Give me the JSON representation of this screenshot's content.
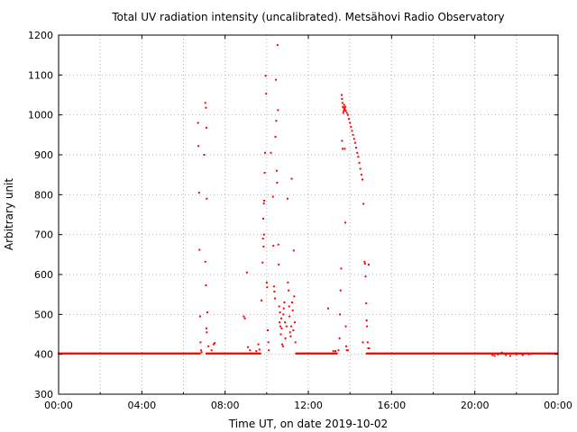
{
  "chart_data": {
    "type": "scatter",
    "title": "Total UV radiation intensity (uncalibrated). Metsähovi Radio Observatory",
    "xlabel": "Time UT, on date 2019-10-02",
    "ylabel": "Arbitrary unit",
    "x_unit": "hours UT",
    "xlim": [
      0,
      24
    ],
    "ylim": [
      300,
      1200
    ],
    "x_ticks": [
      {
        "value": 0,
        "label": "00:00"
      },
      {
        "value": 4,
        "label": "04:00"
      },
      {
        "value": 8,
        "label": "08:00"
      },
      {
        "value": 12,
        "label": "12:00"
      },
      {
        "value": 16,
        "label": "16:00"
      },
      {
        "value": 20,
        "label": "20:00"
      },
      {
        "value": 24,
        "label": "00:00"
      }
    ],
    "y_ticks": [
      300,
      400,
      500,
      600,
      700,
      800,
      900,
      1000,
      1100,
      1200
    ],
    "x_minor_grid": [
      2,
      6,
      10,
      14,
      18,
      22
    ],
    "grid": true,
    "color": "#ff0000",
    "baseline": {
      "y": 402,
      "x_start": 0,
      "x_end": 24,
      "gaps": [
        [
          6.8,
          7.1
        ],
        [
          9.7,
          11.4
        ],
        [
          13.4,
          14.8
        ]
      ]
    },
    "series": [
      {
        "points": [
          [
            6.7,
            980
          ],
          [
            6.72,
            922
          ],
          [
            6.75,
            805
          ],
          [
            6.77,
            662
          ],
          [
            6.8,
            495
          ],
          [
            6.82,
            430
          ],
          [
            6.85,
            410
          ],
          [
            6.87,
            405
          ],
          [
            7.05,
            1030
          ],
          [
            7.08,
            1018
          ],
          [
            7.1,
            968
          ],
          [
            7.0,
            900
          ],
          [
            7.12,
            790
          ],
          [
            7.05,
            632
          ],
          [
            7.08,
            573
          ],
          [
            7.15,
            505
          ],
          [
            7.12,
            455
          ],
          [
            7.1,
            465
          ],
          [
            7.2,
            420
          ],
          [
            7.35,
            410
          ],
          [
            7.45,
            425
          ],
          [
            7.5,
            428
          ],
          [
            8.9,
            495
          ],
          [
            8.95,
            490
          ],
          [
            9.05,
            605
          ],
          [
            9.1,
            418
          ],
          [
            9.2,
            410
          ],
          [
            9.5,
            408
          ],
          [
            9.6,
            425
          ],
          [
            9.65,
            412
          ],
          [
            9.75,
            535
          ],
          [
            9.8,
            630
          ],
          [
            9.82,
            690
          ],
          [
            9.85,
            670
          ],
          [
            9.87,
            700
          ],
          [
            9.88,
            785
          ],
          [
            9.9,
            855
          ],
          [
            9.92,
            905
          ],
          [
            9.95,
            1098
          ],
          [
            9.97,
            1053
          ],
          [
            9.83,
            740
          ],
          [
            9.86,
            778
          ],
          [
            10.0,
            580
          ],
          [
            10.02,
            568
          ],
          [
            10.05,
            460
          ],
          [
            10.08,
            430
          ],
          [
            10.1,
            410
          ],
          [
            10.2,
            905
          ],
          [
            10.3,
            795
          ],
          [
            10.32,
            672
          ],
          [
            10.35,
            570
          ],
          [
            10.37,
            557
          ],
          [
            10.4,
            540
          ],
          [
            10.42,
            945
          ],
          [
            10.44,
            1088
          ],
          [
            10.46,
            985
          ],
          [
            10.48,
            860
          ],
          [
            10.5,
            830
          ],
          [
            10.52,
            1175
          ],
          [
            10.54,
            1012
          ],
          [
            10.56,
            675
          ],
          [
            10.58,
            625
          ],
          [
            10.6,
            520
          ],
          [
            10.62,
            480
          ],
          [
            10.64,
            505
          ],
          [
            10.66,
            470
          ],
          [
            10.68,
            450
          ],
          [
            10.7,
            490
          ],
          [
            10.72,
            465
          ],
          [
            10.75,
            425
          ],
          [
            10.78,
            420
          ],
          [
            10.8,
            500
          ],
          [
            10.82,
            515
          ],
          [
            10.85,
            530
          ],
          [
            10.88,
            480
          ],
          [
            10.9,
            440
          ],
          [
            10.95,
            470
          ],
          [
            11.0,
            790
          ],
          [
            11.02,
            580
          ],
          [
            11.05,
            560
          ],
          [
            11.08,
            520
          ],
          [
            11.1,
            495
          ],
          [
            11.12,
            455
          ],
          [
            11.15,
            445
          ],
          [
            11.18,
            470
          ],
          [
            11.2,
            840
          ],
          [
            11.22,
            530
          ],
          [
            11.25,
            510
          ],
          [
            11.28,
            460
          ],
          [
            11.3,
            660
          ],
          [
            11.32,
            545
          ],
          [
            11.35,
            480
          ],
          [
            11.38,
            430
          ],
          [
            12.95,
            515
          ],
          [
            13.2,
            408
          ],
          [
            13.3,
            408
          ],
          [
            13.45,
            410
          ],
          [
            13.5,
            440
          ],
          [
            13.52,
            500
          ],
          [
            13.55,
            560
          ],
          [
            13.58,
            615
          ],
          [
            13.6,
            1050
          ],
          [
            13.62,
            1040
          ],
          [
            13.64,
            1030
          ],
          [
            13.66,
            1020
          ],
          [
            13.68,
            1005
          ],
          [
            13.7,
            1018
          ],
          [
            13.72,
            1025
          ],
          [
            13.74,
            1015
          ],
          [
            13.76,
            1012
          ],
          [
            13.78,
            1020
          ],
          [
            13.8,
            1010
          ],
          [
            13.85,
            1005
          ],
          [
            13.9,
            1000
          ],
          [
            13.95,
            990
          ],
          [
            14.0,
            980
          ],
          [
            14.05,
            970
          ],
          [
            14.1,
            960
          ],
          [
            14.15,
            950
          ],
          [
            14.2,
            940
          ],
          [
            14.25,
            930
          ],
          [
            14.3,
            918
          ],
          [
            14.35,
            905
          ],
          [
            14.4,
            895
          ],
          [
            14.45,
            880
          ],
          [
            14.5,
            865
          ],
          [
            14.55,
            850
          ],
          [
            14.6,
            838
          ],
          [
            13.62,
            935
          ],
          [
            13.65,
            915
          ],
          [
            13.7,
            1010
          ],
          [
            13.75,
            915
          ],
          [
            13.78,
            730
          ],
          [
            13.8,
            470
          ],
          [
            13.82,
            420
          ],
          [
            13.85,
            410
          ],
          [
            13.9,
            410
          ],
          [
            14.65,
            777
          ],
          [
            14.7,
            632
          ],
          [
            14.72,
            627
          ],
          [
            14.75,
            595
          ],
          [
            14.78,
            528
          ],
          [
            14.8,
            485
          ],
          [
            14.82,
            470
          ],
          [
            14.85,
            430
          ],
          [
            14.88,
            415
          ],
          [
            14.9,
            625
          ],
          [
            14.92,
            415
          ],
          [
            14.62,
            430
          ],
          [
            20.85,
            398
          ],
          [
            20.95,
            396
          ],
          [
            21.1,
            400
          ],
          [
            21.3,
            404
          ],
          [
            21.5,
            398
          ],
          [
            21.7,
            396
          ],
          [
            22.0,
            400
          ],
          [
            22.3,
            398
          ],
          [
            22.6,
            400
          ]
        ]
      }
    ]
  }
}
